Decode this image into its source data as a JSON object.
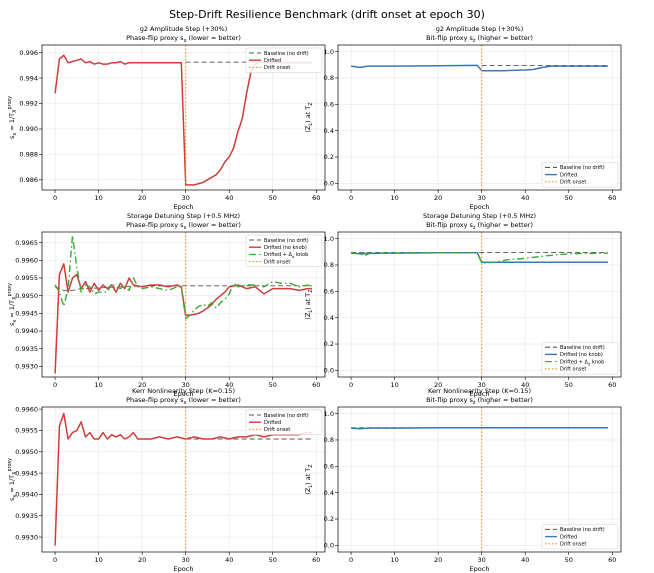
{
  "suptitle": "Step-Drift Resilience Benchmark  (drift onset at epoch 30)",
  "colors": {
    "baseline": "#555555",
    "drifted_red": "#d03c3c",
    "drifted_blue": "#3a78b5",
    "knob_green": "#3aaa35",
    "onset": "#ff8c1a",
    "grid": "#e6e6e6"
  },
  "chart_data": [
    {
      "type": "line",
      "title": "g2 Amplitude Step (+30%)",
      "subtitle": "Phase-flip proxy s_x  (lower = better)",
      "xlabel": "Epoch",
      "ylabel": "s_x = 1/T_X^proxy",
      "xlim": [
        -3,
        62
      ],
      "ylim": [
        0.9852,
        0.9966
      ],
      "xticks": [
        "0",
        "10",
        "20",
        "30",
        "40",
        "50",
        "60"
      ],
      "yticks": [
        "0.986",
        "0.988",
        "0.990",
        "0.992",
        "0.994",
        "0.996"
      ],
      "legend_position": "top-right",
      "series": [
        {
          "name": "Baseline (no drift)",
          "style": "dashed",
          "color": "#555555",
          "x": [
            30,
            59
          ],
          "y": [
            0.99525,
            0.99525
          ]
        },
        {
          "name": "Drifted",
          "style": "solid",
          "color": "#d03c3c",
          "x": [
            0,
            1,
            2,
            3,
            4,
            5,
            6,
            7,
            8,
            9,
            10,
            11,
            12,
            13,
            14,
            15,
            16,
            17,
            18,
            19,
            20,
            22,
            24,
            26,
            28,
            29,
            30,
            31,
            32,
            33,
            34,
            35,
            36,
            37,
            38,
            39,
            40,
            41,
            42,
            43,
            44,
            45,
            46,
            47,
            48,
            49,
            50,
            52,
            54,
            56,
            58,
            59
          ],
          "y": [
            0.9928,
            0.9955,
            0.9958,
            0.9952,
            0.9953,
            0.9954,
            0.9955,
            0.9952,
            0.9953,
            0.9951,
            0.9952,
            0.9951,
            0.9951,
            0.9952,
            0.9952,
            0.9953,
            0.9951,
            0.9952,
            0.9952,
            0.9952,
            0.9952,
            0.9952,
            0.9952,
            0.9952,
            0.9952,
            0.9952,
            0.9856,
            0.9856,
            0.9856,
            0.9857,
            0.9858,
            0.986,
            0.9862,
            0.9864,
            0.9868,
            0.9874,
            0.9878,
            0.9885,
            0.9898,
            0.9908,
            0.9928,
            0.9945,
            0.9951,
            0.9953,
            0.9952,
            0.9952,
            0.9952,
            0.9952,
            0.9952,
            0.9952,
            0.9952,
            0.9952
          ]
        },
        {
          "name": "Drift onset",
          "style": "dotted",
          "color": "#ff8c1a",
          "vline": 30
        }
      ]
    },
    {
      "type": "line",
      "title": "g2 Amplitude Step (+30%)",
      "subtitle": "Bit-flip proxy s_z  (higher = better)",
      "xlabel": "Epoch",
      "ylabel": "⟨Z_L⟩ at T_Z",
      "xlim": [
        -3,
        62
      ],
      "ylim": [
        -0.05,
        1.05
      ],
      "xticks": [
        "0",
        "10",
        "20",
        "30",
        "40",
        "50",
        "60"
      ],
      "yticks": [
        "0.0",
        "0.2",
        "0.4",
        "0.6",
        "0.8",
        "1.0"
      ],
      "legend_position": "lower-right",
      "series": [
        {
          "name": "Baseline (no drift)",
          "style": "dashed",
          "color": "#555555",
          "x": [
            30,
            59
          ],
          "y": [
            0.895,
            0.895
          ]
        },
        {
          "name": "Drifted",
          "style": "solid",
          "color": "#3a78b5",
          "x": [
            0,
            2,
            4,
            10,
            20,
            29,
            30,
            35,
            40,
            42,
            44,
            46,
            50,
            59
          ],
          "y": [
            0.89,
            0.88,
            0.89,
            0.89,
            0.892,
            0.895,
            0.855,
            0.855,
            0.86,
            0.865,
            0.88,
            0.89,
            0.89,
            0.89
          ]
        },
        {
          "name": "Drift onset",
          "style": "dotted",
          "color": "#ff8c1a",
          "vline": 30
        }
      ]
    },
    {
      "type": "line",
      "title": "Storage Detuning Step (+0.5 MHz)",
      "subtitle": "Phase-flip proxy s_x  (lower = better)",
      "xlabel": "Epoch",
      "ylabel": "s_x = 1/T_X^proxy",
      "xlim": [
        -3,
        62
      ],
      "ylim": [
        0.9927,
        0.9968
      ],
      "xticks": [
        "0",
        "10",
        "20",
        "30",
        "40",
        "50",
        "60"
      ],
      "yticks": [
        "0.9930",
        "0.9935",
        "0.9940",
        "0.9945",
        "0.9950",
        "0.9955",
        "0.9960",
        "0.9965"
      ],
      "legend_position": "top-right",
      "series": [
        {
          "name": "Baseline (no drift)",
          "style": "dashed",
          "color": "#555555",
          "x": [
            0,
            2,
            4,
            6,
            8,
            10,
            15,
            20,
            25,
            30,
            35,
            40,
            45,
            50,
            55,
            59
          ],
          "y": [
            0.99525,
            0.99515,
            0.99515,
            0.9952,
            0.9952,
            0.99522,
            0.99525,
            0.99527,
            0.99528,
            0.99528,
            0.99528,
            0.99528,
            0.99528,
            0.99528,
            0.99528,
            0.99528
          ]
        },
        {
          "name": "Drifted (no knob)",
          "style": "solid",
          "color": "#d03c3c",
          "x": [
            0,
            1,
            2,
            3,
            4,
            5,
            6,
            7,
            8,
            9,
            10,
            11,
            12,
            13,
            14,
            15,
            16,
            17,
            18,
            20,
            22,
            24,
            26,
            28,
            29,
            30,
            31,
            32,
            33,
            34,
            35,
            36,
            37,
            38,
            39,
            40,
            42,
            44,
            46,
            48,
            50,
            52,
            54,
            56,
            58,
            59
          ],
          "y": [
            0.9928,
            0.9956,
            0.9959,
            0.9951,
            0.9955,
            0.9956,
            0.9952,
            0.9954,
            0.9951,
            0.99535,
            0.99515,
            0.9953,
            0.9952,
            0.9953,
            0.9951,
            0.99535,
            0.9952,
            0.9955,
            0.9953,
            0.99525,
            0.9953,
            0.9953,
            0.99525,
            0.9953,
            0.99525,
            0.99445,
            0.99445,
            0.99447,
            0.9945,
            0.99457,
            0.99465,
            0.99475,
            0.9949,
            0.995,
            0.9951,
            0.99525,
            0.9953,
            0.9952,
            0.99525,
            0.99505,
            0.9952,
            0.9952,
            0.9952,
            0.99515,
            0.9952,
            0.9952
          ]
        },
        {
          "name": "Drifted + Δ_d knob",
          "style": "dashdot",
          "color": "#3aaa35",
          "x": [
            0,
            1,
            2,
            3,
            4,
            5,
            6,
            7,
            8,
            9,
            10,
            11,
            12,
            13,
            14,
            15,
            16,
            17,
            18,
            19,
            20,
            22,
            24,
            26,
            28,
            29,
            30,
            31,
            32,
            33,
            34,
            35,
            36,
            37,
            38,
            39,
            40,
            41,
            42,
            44,
            46,
            48,
            50,
            52,
            54,
            56,
            58,
            59
          ],
          "y": [
            0.9953,
            0.9951,
            0.9947,
            0.9952,
            0.9967,
            0.9958,
            0.9951,
            0.9953,
            0.99525,
            0.99505,
            0.9951,
            0.9951,
            0.9951,
            0.99535,
            0.99525,
            0.9952,
            0.9953,
            0.99515,
            0.9955,
            0.99525,
            0.9952,
            0.99525,
            0.9952,
            0.99515,
            0.99525,
            0.99525,
            0.99435,
            0.99445,
            0.9946,
            0.9947,
            0.99475,
            0.9947,
            0.9948,
            0.99465,
            0.9948,
            0.9949,
            0.99505,
            0.99535,
            0.99525,
            0.9953,
            0.9953,
            0.99525,
            0.9954,
            0.99535,
            0.99535,
            0.99525,
            0.9953,
            0.99525
          ]
        },
        {
          "name": "Drift onset",
          "style": "dotted",
          "color": "#ff8c1a",
          "vline": 30
        }
      ]
    },
    {
      "type": "line",
      "title": "Storage Detuning Step (+0.5 MHz)",
      "subtitle": "Bit-flip proxy s_z  (higher = better)",
      "xlabel": "Epoch",
      "ylabel": "⟨Z_L⟩ at T_Z",
      "xlim": [
        -3,
        62
      ],
      "ylim": [
        -0.05,
        1.05
      ],
      "xticks": [
        "0",
        "10",
        "20",
        "30",
        "40",
        "50",
        "60"
      ],
      "yticks": [
        "0.0",
        "0.2",
        "0.4",
        "0.6",
        "0.8",
        "1.0"
      ],
      "legend_position": "lower-right",
      "series": [
        {
          "name": "Baseline (no drift)",
          "style": "dashed",
          "color": "#555555",
          "x": [
            0,
            10,
            20,
            30,
            40,
            50,
            59
          ],
          "y": [
            0.895,
            0.895,
            0.895,
            0.895,
            0.895,
            0.895,
            0.895
          ]
        },
        {
          "name": "Drifted (no knob)",
          "style": "solid",
          "color": "#3a78b5",
          "x": [
            0,
            2,
            4,
            10,
            20,
            29,
            30,
            40,
            50,
            59
          ],
          "y": [
            0.89,
            0.885,
            0.888,
            0.89,
            0.892,
            0.893,
            0.82,
            0.82,
            0.82,
            0.82
          ]
        },
        {
          "name": "Drifted + Δ_d knob",
          "style": "dashdot",
          "color": "#3aaa35",
          "x": [
            0,
            2,
            3,
            4,
            5,
            6,
            10,
            20,
            29,
            30,
            33,
            36,
            40,
            45,
            50,
            59
          ],
          "y": [
            0.89,
            0.885,
            0.87,
            0.885,
            0.89,
            0.89,
            0.89,
            0.893,
            0.893,
            0.815,
            0.82,
            0.84,
            0.85,
            0.87,
            0.885,
            0.89
          ]
        },
        {
          "name": "Drift onset",
          "style": "dotted",
          "color": "#ff8c1a",
          "vline": 30
        }
      ]
    },
    {
      "type": "line",
      "title": "Kerr Nonlinearity Step (K=0.15)",
      "subtitle": "Phase-flip proxy s_x  (lower = better)",
      "xlabel": "Epoch",
      "ylabel": "s_x = 1/T_X^proxy",
      "xlim": [
        -3,
        62
      ],
      "ylim": [
        0.99265,
        0.99605
      ],
      "xticks": [
        "0",
        "10",
        "20",
        "30",
        "40",
        "50",
        "60"
      ],
      "yticks": [
        "0.9930",
        "0.9935",
        "0.9940",
        "0.9945",
        "0.9950",
        "0.9955",
        "0.9960"
      ],
      "legend_position": "top-right",
      "series": [
        {
          "name": "Baseline (no drift)",
          "style": "dashed",
          "color": "#555555",
          "x": [
            30,
            35,
            40,
            45,
            50,
            55,
            59
          ],
          "y": [
            0.9953,
            0.9953,
            0.9953,
            0.9953,
            0.9953,
            0.9953,
            0.9953
          ]
        },
        {
          "name": "Drifted",
          "style": "solid",
          "color": "#d03c3c",
          "x": [
            0,
            1,
            2,
            3,
            4,
            5,
            6,
            7,
            8,
            9,
            10,
            11,
            12,
            13,
            14,
            15,
            16,
            17,
            18,
            19,
            20,
            22,
            24,
            26,
            28,
            30,
            32,
            34,
            36,
            38,
            40,
            42,
            44,
            46,
            48,
            50,
            52,
            54,
            56,
            58,
            59
          ],
          "y": [
            0.9928,
            0.9956,
            0.9959,
            0.9953,
            0.99545,
            0.9955,
            0.9957,
            0.99535,
            0.99545,
            0.9953,
            0.9953,
            0.99545,
            0.9953,
            0.9954,
            0.99535,
            0.9954,
            0.9953,
            0.99535,
            0.99545,
            0.9953,
            0.9953,
            0.9953,
            0.99535,
            0.9953,
            0.99535,
            0.9953,
            0.99535,
            0.9953,
            0.9953,
            0.99535,
            0.9953,
            0.99535,
            0.99535,
            0.9954,
            0.99535,
            0.9954,
            0.9954,
            0.9954,
            0.9954,
            0.99545,
            0.99545
          ]
        },
        {
          "name": "Drift onset",
          "style": "dotted",
          "color": "#ff8c1a",
          "vline": 30
        }
      ]
    },
    {
      "type": "line",
      "title": "Kerr Nonlinearity Step (K=0.15)",
      "subtitle": "Bit-flip proxy s_z  (higher = better)",
      "xlabel": "Epoch",
      "ylabel": "⟨Z_L⟩ at T_Z",
      "xlim": [
        -3,
        62
      ],
      "ylim": [
        -0.05,
        1.05
      ],
      "xticks": [
        "0",
        "10",
        "20",
        "30",
        "40",
        "50",
        "60"
      ],
      "yticks": [
        "0.0",
        "0.2",
        "0.4",
        "0.6",
        "0.8",
        "1.0"
      ],
      "legend_position": "lower-right",
      "series": [
        {
          "name": "Baseline (no drift)",
          "style": "dashed",
          "color": "#d03c3c",
          "x": [
            0,
            10,
            20,
            30,
            40,
            50,
            59
          ],
          "y": [
            0.893,
            0.893,
            0.893,
            0.893,
            0.893,
            0.893,
            0.893
          ]
        },
        {
          "name": "Drifted",
          "style": "solid",
          "color": "#3a78b5",
          "x": [
            0,
            2,
            4,
            10,
            20,
            30,
            40,
            50,
            59
          ],
          "y": [
            0.89,
            0.885,
            0.89,
            0.89,
            0.892,
            0.892,
            0.892,
            0.892,
            0.892
          ]
        },
        {
          "name": "Drift onset",
          "style": "dotted",
          "color": "#ff8c1a",
          "vline": 30
        }
      ]
    }
  ]
}
